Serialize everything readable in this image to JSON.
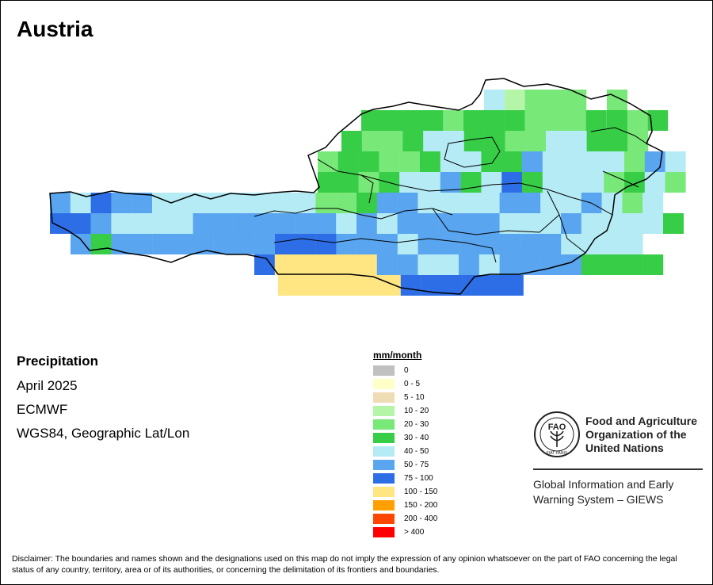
{
  "map": {
    "title": "Austria",
    "variable": "Precipitation",
    "period": "April 2025",
    "source": "ECMWF",
    "projection": "WGS84, Geographic Lat/Lon",
    "legend": {
      "title": "mm/month",
      "classes": [
        {
          "label": "0",
          "color": "#c0c0c0"
        },
        {
          "label": "0 - 5",
          "color": "#ffffc8"
        },
        {
          "label": "5 - 10",
          "color": "#f0dcb4"
        },
        {
          "label": "10 - 20",
          "color": "#b4f5a8"
        },
        {
          "label": "20 - 30",
          "color": "#78e878"
        },
        {
          "label": "30 - 40",
          "color": "#37cd46"
        },
        {
          "label": "40 - 50",
          "color": "#b4ebf5"
        },
        {
          "label": "50 - 75",
          "color": "#5aa5f0"
        },
        {
          "label": "75 - 100",
          "color": "#2d6ee6"
        },
        {
          "label": "100 - 150",
          "color": "#ffe682"
        },
        {
          "label": "150 - 200",
          "color": "#ffa000"
        },
        {
          "label": "200 - 400",
          "color": "#ff4600"
        },
        {
          "label": "> 400",
          "color": "#ff0000"
        }
      ]
    }
  },
  "org": {
    "name": "Food and Agriculture Organization of the United Nations",
    "name_lines": [
      "Food and Agriculture",
      "Organization of the",
      "United Nations"
    ],
    "logo_text": "FAO",
    "logo_motto": "FIAT PANIS",
    "system_lines": [
      "Global Information and Early",
      "Warning System – GIEWS"
    ]
  },
  "disclaimer": "Disclaimer: The boundaries and names shown and the designations used on this map do not imply the expression of any opinion whatsoever on the part of FAO concerning the legal status of any country, territory, area or of its authorities, or concerning the delimitation of its frontiers and boundaries."
}
